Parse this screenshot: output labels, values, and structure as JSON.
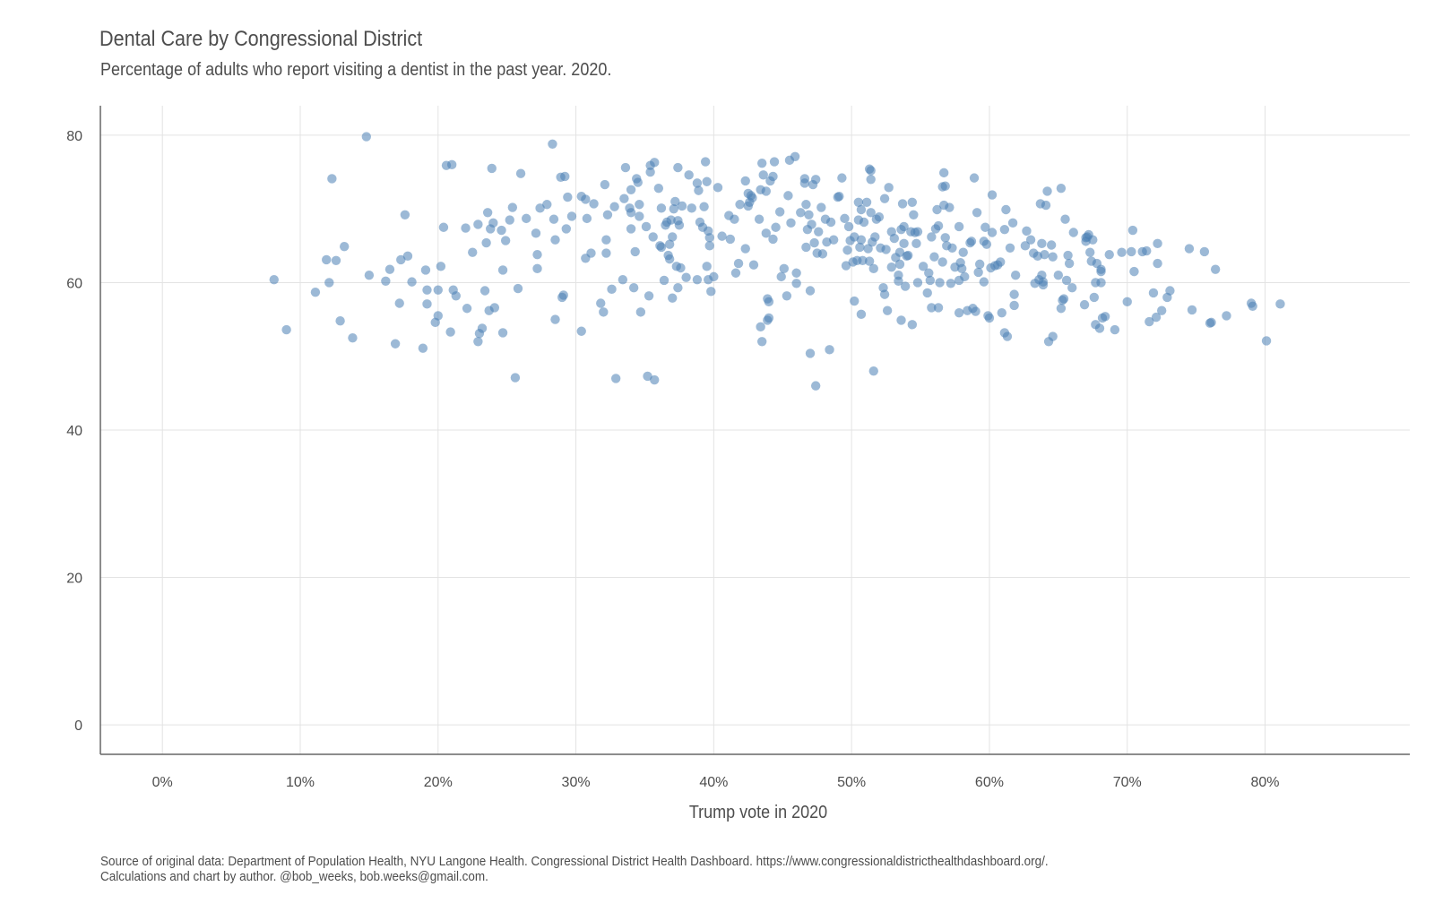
{
  "chart_data": {
    "type": "scatter",
    "title": "Dental Care by Congressional District",
    "subtitle": "Percentage of adults who report visiting a dentist in the past year. 2020.",
    "xlabel": "Trump vote in 2020",
    "ylabel": "",
    "xlim": [
      -0.045,
      0.905
    ],
    "ylim": [
      -4,
      84
    ],
    "x_ticks": [
      0,
      0.1,
      0.2,
      0.3,
      0.4,
      0.5,
      0.6,
      0.7,
      0.8
    ],
    "x_tick_labels": [
      "0%",
      "10%",
      "20%",
      "30%",
      "40%",
      "50%",
      "60%",
      "70%",
      "80%"
    ],
    "y_ticks": [
      0,
      20,
      40,
      60,
      80
    ],
    "y_tick_labels": [
      "0",
      "20",
      "40",
      "60",
      "80"
    ],
    "grid": true,
    "legend": "none",
    "point_color": "#4a7fb5",
    "points": [
      [
        0.081,
        60.4
      ],
      [
        0.09,
        53.6
      ],
      [
        0.111,
        58.7
      ],
      [
        0.119,
        63.1
      ],
      [
        0.121,
        60.0
      ],
      [
        0.123,
        74.1
      ],
      [
        0.126,
        63.0
      ],
      [
        0.129,
        54.8
      ],
      [
        0.132,
        64.9
      ],
      [
        0.138,
        52.5
      ],
      [
        0.148,
        79.8
      ],
      [
        0.15,
        61.0
      ],
      [
        0.162,
        60.2
      ],
      [
        0.165,
        61.8
      ],
      [
        0.169,
        51.7
      ],
      [
        0.172,
        57.2
      ],
      [
        0.173,
        63.1
      ],
      [
        0.176,
        69.2
      ],
      [
        0.178,
        63.6
      ],
      [
        0.181,
        60.1
      ],
      [
        0.189,
        51.1
      ],
      [
        0.191,
        61.7
      ],
      [
        0.192,
        57.1
      ],
      [
        0.192,
        59.0
      ],
      [
        0.198,
        54.6
      ],
      [
        0.2,
        55.5
      ],
      [
        0.2,
        59.0
      ],
      [
        0.202,
        62.2
      ],
      [
        0.204,
        67.5
      ],
      [
        0.206,
        75.9
      ],
      [
        0.209,
        53.3
      ],
      [
        0.21,
        76.0
      ],
      [
        0.211,
        59.0
      ],
      [
        0.213,
        58.2
      ],
      [
        0.22,
        67.4
      ],
      [
        0.221,
        56.5
      ],
      [
        0.225,
        64.1
      ],
      [
        0.229,
        67.9
      ],
      [
        0.229,
        52.0
      ],
      [
        0.23,
        53.1
      ],
      [
        0.232,
        53.8
      ],
      [
        0.234,
        58.9
      ],
      [
        0.235,
        65.4
      ],
      [
        0.236,
        69.5
      ],
      [
        0.237,
        56.2
      ],
      [
        0.238,
        67.3
      ],
      [
        0.239,
        75.5
      ],
      [
        0.24,
        68.1
      ],
      [
        0.241,
        56.6
      ],
      [
        0.246,
        67.1
      ],
      [
        0.247,
        61.7
      ],
      [
        0.247,
        53.2
      ],
      [
        0.249,
        65.7
      ],
      [
        0.252,
        68.5
      ],
      [
        0.254,
        70.2
      ],
      [
        0.256,
        47.1
      ],
      [
        0.258,
        59.2
      ],
      [
        0.26,
        74.8
      ],
      [
        0.264,
        68.7
      ],
      [
        0.271,
        66.7
      ],
      [
        0.272,
        63.8
      ],
      [
        0.272,
        61.9
      ],
      [
        0.274,
        70.1
      ],
      [
        0.279,
        70.6
      ],
      [
        0.283,
        78.8
      ],
      [
        0.284,
        68.6
      ],
      [
        0.285,
        55.0
      ],
      [
        0.285,
        65.8
      ],
      [
        0.289,
        74.3
      ],
      [
        0.29,
        58.0
      ],
      [
        0.291,
        58.3
      ],
      [
        0.292,
        74.4
      ],
      [
        0.293,
        67.3
      ],
      [
        0.294,
        71.6
      ],
      [
        0.297,
        69.0
      ],
      [
        0.304,
        53.4
      ],
      [
        0.304,
        71.7
      ],
      [
        0.307,
        71.3
      ],
      [
        0.307,
        63.3
      ],
      [
        0.308,
        68.7
      ],
      [
        0.311,
        64.0
      ],
      [
        0.313,
        70.7
      ],
      [
        0.318,
        57.2
      ],
      [
        0.32,
        56.0
      ],
      [
        0.321,
        73.3
      ],
      [
        0.322,
        65.8
      ],
      [
        0.322,
        64.0
      ],
      [
        0.323,
        69.2
      ],
      [
        0.326,
        59.1
      ],
      [
        0.328,
        70.3
      ],
      [
        0.329,
        47.0
      ],
      [
        0.334,
        60.4
      ],
      [
        0.335,
        71.4
      ],
      [
        0.336,
        75.6
      ],
      [
        0.339,
        70.1
      ],
      [
        0.34,
        72.6
      ],
      [
        0.34,
        69.5
      ],
      [
        0.34,
        67.3
      ],
      [
        0.342,
        59.3
      ],
      [
        0.343,
        64.2
      ],
      [
        0.344,
        74.1
      ],
      [
        0.345,
        73.6
      ],
      [
        0.346,
        70.6
      ],
      [
        0.346,
        69.0
      ],
      [
        0.347,
        56.0
      ],
      [
        0.351,
        67.6
      ],
      [
        0.352,
        47.3
      ],
      [
        0.353,
        58.2
      ],
      [
        0.354,
        75.9
      ],
      [
        0.354,
        75.0
      ],
      [
        0.356,
        66.2
      ],
      [
        0.357,
        76.3
      ],
      [
        0.357,
        46.8
      ],
      [
        0.36,
        72.8
      ],
      [
        0.361,
        65.0
      ],
      [
        0.362,
        64.8
      ],
      [
        0.362,
        70.1
      ],
      [
        0.364,
        60.3
      ],
      [
        0.365,
        67.8
      ],
      [
        0.366,
        68.2
      ],
      [
        0.367,
        63.7
      ],
      [
        0.368,
        65.2
      ],
      [
        0.368,
        63.2
      ],
      [
        0.369,
        68.5
      ],
      [
        0.37,
        66.2
      ],
      [
        0.37,
        57.9
      ],
      [
        0.371,
        70.0
      ],
      [
        0.372,
        71.0
      ],
      [
        0.373,
        62.2
      ],
      [
        0.374,
        59.3
      ],
      [
        0.374,
        75.6
      ],
      [
        0.374,
        68.4
      ],
      [
        0.375,
        67.8
      ],
      [
        0.376,
        62.0
      ],
      [
        0.377,
        70.4
      ],
      [
        0.38,
        60.7
      ],
      [
        0.382,
        74.6
      ],
      [
        0.384,
        70.1
      ],
      [
        0.388,
        73.5
      ],
      [
        0.388,
        60.4
      ],
      [
        0.389,
        72.5
      ],
      [
        0.39,
        68.2
      ],
      [
        0.392,
        67.5
      ],
      [
        0.393,
        70.3
      ],
      [
        0.394,
        76.4
      ],
      [
        0.395,
        73.7
      ],
      [
        0.395,
        62.2
      ],
      [
        0.396,
        60.4
      ],
      [
        0.396,
        67.0
      ],
      [
        0.397,
        66.1
      ],
      [
        0.397,
        65.0
      ],
      [
        0.398,
        58.8
      ],
      [
        0.4,
        60.8
      ],
      [
        0.403,
        72.9
      ],
      [
        0.406,
        66.3
      ],
      [
        0.411,
        69.1
      ],
      [
        0.412,
        65.9
      ],
      [
        0.415,
        68.6
      ],
      [
        0.416,
        61.3
      ],
      [
        0.418,
        62.6
      ],
      [
        0.419,
        70.6
      ],
      [
        0.423,
        73.8
      ],
      [
        0.423,
        64.6
      ],
      [
        0.425,
        70.4
      ],
      [
        0.425,
        72.1
      ],
      [
        0.426,
        70.9
      ],
      [
        0.427,
        71.8
      ],
      [
        0.428,
        71.5
      ],
      [
        0.429,
        62.4
      ],
      [
        0.433,
        68.6
      ],
      [
        0.434,
        72.6
      ],
      [
        0.434,
        54.0
      ],
      [
        0.435,
        52.0
      ],
      [
        0.435,
        76.2
      ],
      [
        0.436,
        74.6
      ],
      [
        0.438,
        72.4
      ],
      [
        0.438,
        66.7
      ],
      [
        0.439,
        54.9
      ],
      [
        0.439,
        57.8
      ],
      [
        0.44,
        55.2
      ],
      [
        0.44,
        57.4
      ],
      [
        0.441,
        73.8
      ],
      [
        0.443,
        74.4
      ],
      [
        0.443,
        65.9
      ],
      [
        0.444,
        76.4
      ],
      [
        0.445,
        67.5
      ],
      [
        0.448,
        69.6
      ],
      [
        0.449,
        60.8
      ],
      [
        0.451,
        61.9
      ],
      [
        0.453,
        58.2
      ],
      [
        0.454,
        71.8
      ],
      [
        0.455,
        76.6
      ],
      [
        0.456,
        68.1
      ],
      [
        0.459,
        77.1
      ],
      [
        0.46,
        61.3
      ],
      [
        0.46,
        59.9
      ],
      [
        0.463,
        69.5
      ],
      [
        0.466,
        74.1
      ],
      [
        0.466,
        73.5
      ],
      [
        0.467,
        64.8
      ],
      [
        0.467,
        70.6
      ],
      [
        0.468,
        67.2
      ],
      [
        0.469,
        69.2
      ],
      [
        0.47,
        58.9
      ],
      [
        0.47,
        50.4
      ],
      [
        0.471,
        67.9
      ],
      [
        0.472,
        73.3
      ],
      [
        0.473,
        65.4
      ],
      [
        0.474,
        74.0
      ],
      [
        0.474,
        46.0
      ],
      [
        0.475,
        64.0
      ],
      [
        0.476,
        66.9
      ],
      [
        0.478,
        70.2
      ],
      [
        0.479,
        63.9
      ],
      [
        0.481,
        68.6
      ],
      [
        0.482,
        65.5
      ],
      [
        0.484,
        50.9
      ],
      [
        0.485,
        68.2
      ],
      [
        0.487,
        65.8
      ],
      [
        0.49,
        71.6
      ],
      [
        0.491,
        71.7
      ],
      [
        0.493,
        74.2
      ],
      [
        0.495,
        68.7
      ],
      [
        0.496,
        62.3
      ],
      [
        0.497,
        64.4
      ],
      [
        0.498,
        67.6
      ],
      [
        0.499,
        65.7
      ],
      [
        0.501,
        62.8
      ],
      [
        0.502,
        66.2
      ],
      [
        0.502,
        57.5
      ],
      [
        0.504,
        63.0
      ],
      [
        0.505,
        70.9
      ],
      [
        0.505,
        68.5
      ],
      [
        0.506,
        64.8
      ],
      [
        0.507,
        65.8
      ],
      [
        0.507,
        55.7
      ],
      [
        0.507,
        69.9
      ],
      [
        0.508,
        63.0
      ],
      [
        0.509,
        68.2
      ],
      [
        0.511,
        70.9
      ],
      [
        0.512,
        64.6
      ],
      [
        0.513,
        62.9
      ],
      [
        0.513,
        75.4
      ],
      [
        0.514,
        75.2
      ],
      [
        0.514,
        74.0
      ],
      [
        0.514,
        69.5
      ],
      [
        0.515,
        65.5
      ],
      [
        0.516,
        61.9
      ],
      [
        0.516,
        48.0
      ],
      [
        0.517,
        66.2
      ],
      [
        0.518,
        68.6
      ],
      [
        0.52,
        68.9
      ],
      [
        0.521,
        64.7
      ],
      [
        0.523,
        59.3
      ],
      [
        0.524,
        71.4
      ],
      [
        0.524,
        58.4
      ],
      [
        0.525,
        64.5
      ],
      [
        0.526,
        56.2
      ],
      [
        0.527,
        72.9
      ],
      [
        0.529,
        66.9
      ],
      [
        0.529,
        62.1
      ],
      [
        0.531,
        66.0
      ],
      [
        0.532,
        63.4
      ],
      [
        0.534,
        61.0
      ],
      [
        0.534,
        60.2
      ],
      [
        0.535,
        62.5
      ],
      [
        0.535,
        64.1
      ],
      [
        0.536,
        67.2
      ],
      [
        0.536,
        54.9
      ],
      [
        0.537,
        70.7
      ],
      [
        0.538,
        65.3
      ],
      [
        0.538,
        67.6
      ],
      [
        0.539,
        59.5
      ],
      [
        0.54,
        63.6
      ],
      [
        0.541,
        63.7
      ],
      [
        0.543,
        66.9
      ],
      [
        0.544,
        70.9
      ],
      [
        0.544,
        54.3
      ],
      [
        0.545,
        69.2
      ],
      [
        0.546,
        66.8
      ],
      [
        0.547,
        65.3
      ],
      [
        0.548,
        66.9
      ],
      [
        0.548,
        60.0
      ],
      [
        0.552,
        62.2
      ],
      [
        0.555,
        58.6
      ],
      [
        0.556,
        61.3
      ],
      [
        0.557,
        60.3
      ],
      [
        0.558,
        66.2
      ],
      [
        0.558,
        56.6
      ],
      [
        0.56,
        63.5
      ],
      [
        0.561,
        67.3
      ],
      [
        0.562,
        69.9
      ],
      [
        0.563,
        67.7
      ],
      [
        0.563,
        56.6
      ],
      [
        0.564,
        60.0
      ],
      [
        0.566,
        62.8
      ],
      [
        0.566,
        73.0
      ],
      [
        0.567,
        74.9
      ],
      [
        0.567,
        70.5
      ],
      [
        0.568,
        73.1
      ],
      [
        0.568,
        66.1
      ],
      [
        0.569,
        65.0
      ],
      [
        0.571,
        70.2
      ],
      [
        0.572,
        59.9
      ],
      [
        0.573,
        64.7
      ],
      [
        0.575,
        62.1
      ],
      [
        0.578,
        60.3
      ],
      [
        0.578,
        55.9
      ],
      [
        0.578,
        67.6
      ],
      [
        0.579,
        62.7
      ],
      [
        0.58,
        61.9
      ],
      [
        0.581,
        64.1
      ],
      [
        0.582,
        60.8
      ],
      [
        0.584,
        56.2
      ],
      [
        0.586,
        65.4
      ],
      [
        0.587,
        65.6
      ],
      [
        0.588,
        56.5
      ],
      [
        0.589,
        74.2
      ],
      [
        0.59,
        56.1
      ],
      [
        0.591,
        69.5
      ],
      [
        0.592,
        61.4
      ],
      [
        0.593,
        62.5
      ],
      [
        0.596,
        65.6
      ],
      [
        0.596,
        60.1
      ],
      [
        0.597,
        67.5
      ],
      [
        0.598,
        65.2
      ],
      [
        0.599,
        55.5
      ],
      [
        0.6,
        55.2
      ],
      [
        0.601,
        62.0
      ],
      [
        0.602,
        66.8
      ],
      [
        0.602,
        71.9
      ],
      [
        0.604,
        62.3
      ],
      [
        0.606,
        62.4
      ],
      [
        0.608,
        62.8
      ],
      [
        0.609,
        55.9
      ],
      [
        0.611,
        53.2
      ],
      [
        0.611,
        67.2
      ],
      [
        0.612,
        69.9
      ],
      [
        0.613,
        52.7
      ],
      [
        0.615,
        64.7
      ],
      [
        0.617,
        68.1
      ],
      [
        0.618,
        56.9
      ],
      [
        0.618,
        58.4
      ],
      [
        0.619,
        61.0
      ],
      [
        0.626,
        65.0
      ],
      [
        0.627,
        67.0
      ],
      [
        0.63,
        65.8
      ],
      [
        0.632,
        64.0
      ],
      [
        0.633,
        59.9
      ],
      [
        0.635,
        63.6
      ],
      [
        0.636,
        60.4
      ],
      [
        0.637,
        70.7
      ],
      [
        0.638,
        61.0
      ],
      [
        0.638,
        65.3
      ],
      [
        0.639,
        59.7
      ],
      [
        0.639,
        60.1
      ],
      [
        0.64,
        63.8
      ],
      [
        0.641,
        70.5
      ],
      [
        0.642,
        72.4
      ],
      [
        0.643,
        52.0
      ],
      [
        0.645,
        65.1
      ],
      [
        0.646,
        52.7
      ],
      [
        0.646,
        63.5
      ],
      [
        0.65,
        61.0
      ],
      [
        0.652,
        72.8
      ],
      [
        0.652,
        56.5
      ],
      [
        0.653,
        57.6
      ],
      [
        0.654,
        57.8
      ],
      [
        0.655,
        68.6
      ],
      [
        0.656,
        60.3
      ],
      [
        0.657,
        63.7
      ],
      [
        0.658,
        62.6
      ],
      [
        0.66,
        59.3
      ],
      [
        0.661,
        66.8
      ],
      [
        0.669,
        57.0
      ],
      [
        0.67,
        65.6
      ],
      [
        0.67,
        66.1
      ],
      [
        0.671,
        66.2
      ],
      [
        0.672,
        66.5
      ],
      [
        0.673,
        64.1
      ],
      [
        0.674,
        62.9
      ],
      [
        0.675,
        65.8
      ],
      [
        0.676,
        58.0
      ],
      [
        0.677,
        60.0
      ],
      [
        0.677,
        54.3
      ],
      [
        0.678,
        62.6
      ],
      [
        0.68,
        53.8
      ],
      [
        0.681,
        61.8
      ],
      [
        0.681,
        61.5
      ],
      [
        0.681,
        60.0
      ],
      [
        0.682,
        55.2
      ],
      [
        0.684,
        55.4
      ],
      [
        0.687,
        63.8
      ],
      [
        0.691,
        53.6
      ],
      [
        0.696,
        64.1
      ],
      [
        0.7,
        57.4
      ],
      [
        0.703,
        64.2
      ],
      [
        0.704,
        67.1
      ],
      [
        0.705,
        61.5
      ],
      [
        0.711,
        64.2
      ],
      [
        0.714,
        64.3
      ],
      [
        0.716,
        54.7
      ],
      [
        0.719,
        58.6
      ],
      [
        0.721,
        55.3
      ],
      [
        0.722,
        62.6
      ],
      [
        0.722,
        65.3
      ],
      [
        0.725,
        56.2
      ],
      [
        0.729,
        58.0
      ],
      [
        0.731,
        58.9
      ],
      [
        0.745,
        64.6
      ],
      [
        0.747,
        56.3
      ],
      [
        0.756,
        64.2
      ],
      [
        0.76,
        54.5
      ],
      [
        0.761,
        54.6
      ],
      [
        0.764,
        61.8
      ],
      [
        0.772,
        55.5
      ],
      [
        0.79,
        57.2
      ],
      [
        0.791,
        56.8
      ],
      [
        0.801,
        52.1
      ],
      [
        0.811,
        57.1
      ]
    ]
  },
  "caption": {
    "line1": "Source of original data: Department of Population Health, NYU Langone Health. Congressional District Health Dashboard. https://www.congressionaldistricthealthdashboard.org/.",
    "line2": "Calculations and chart by author. @bob_weeks, bob.weeks@gmail.com."
  }
}
